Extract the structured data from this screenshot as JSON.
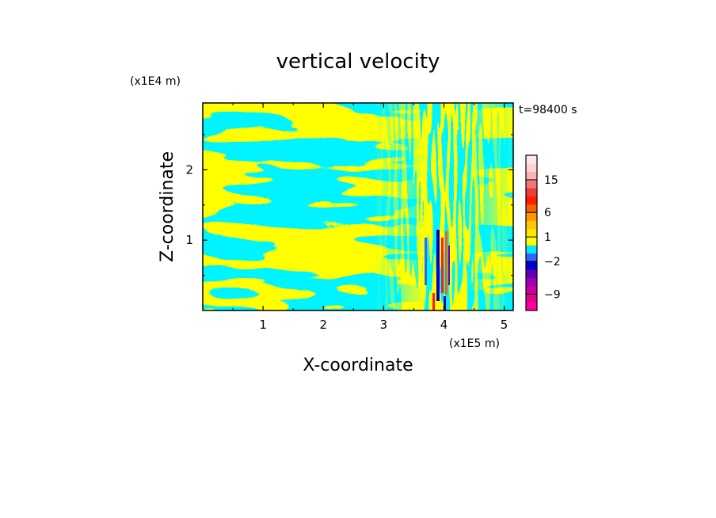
{
  "chart_data": {
    "type": "heatmap",
    "title": "vertical velocity",
    "xlabel": "X-coordinate",
    "ylabel": "Z-coordinate",
    "x_scale_label": "(x1E5 m)",
    "y_scale_label": "(x1E4 m)",
    "time_label": "t=98400 s",
    "xlim": [
      0,
      5.15
    ],
    "ylim": [
      0,
      2.95
    ],
    "x_ticks": [
      1,
      2,
      3,
      4,
      5
    ],
    "x_tick_labels": [
      "1",
      "2",
      "3",
      "4",
      "5"
    ],
    "y_ticks": [
      1,
      2
    ],
    "y_tick_labels": [
      "1",
      "2"
    ],
    "colorbar": {
      "levels": [
        {
          "color": "#ff00a0"
        },
        {
          "color": "#e6008c"
        },
        {
          "color": "#c8009b"
        },
        {
          "color": "#a000b4"
        },
        {
          "color": "#6400b4"
        },
        {
          "color": "#0000c8"
        },
        {
          "color": "#3264ff"
        },
        {
          "color": "#00e6ff"
        },
        {
          "color": "#ffff00"
        },
        {
          "color": "#ffe600"
        },
        {
          "color": "#ffc800"
        },
        {
          "color": "#ff9600"
        },
        {
          "color": "#f06400"
        },
        {
          "color": "#ff1e00"
        },
        {
          "color": "#f03c3c"
        },
        {
          "color": "#f07878"
        },
        {
          "color": "#f8b4b4"
        },
        {
          "color": "#ffd2d2"
        },
        {
          "color": "#ffe6e6"
        }
      ],
      "labeled_ticks": [
        {
          "label": "15",
          "level_index": 16
        },
        {
          "label": "6",
          "level_index": 12
        },
        {
          "label": "1",
          "level_index": 9
        },
        {
          "label": "−2",
          "level_index": 6
        },
        {
          "label": "−9",
          "level_index": 2
        }
      ]
    },
    "description_colors": {
      "positive": "#ffff00",
      "negative": "#00e6ff"
    }
  }
}
